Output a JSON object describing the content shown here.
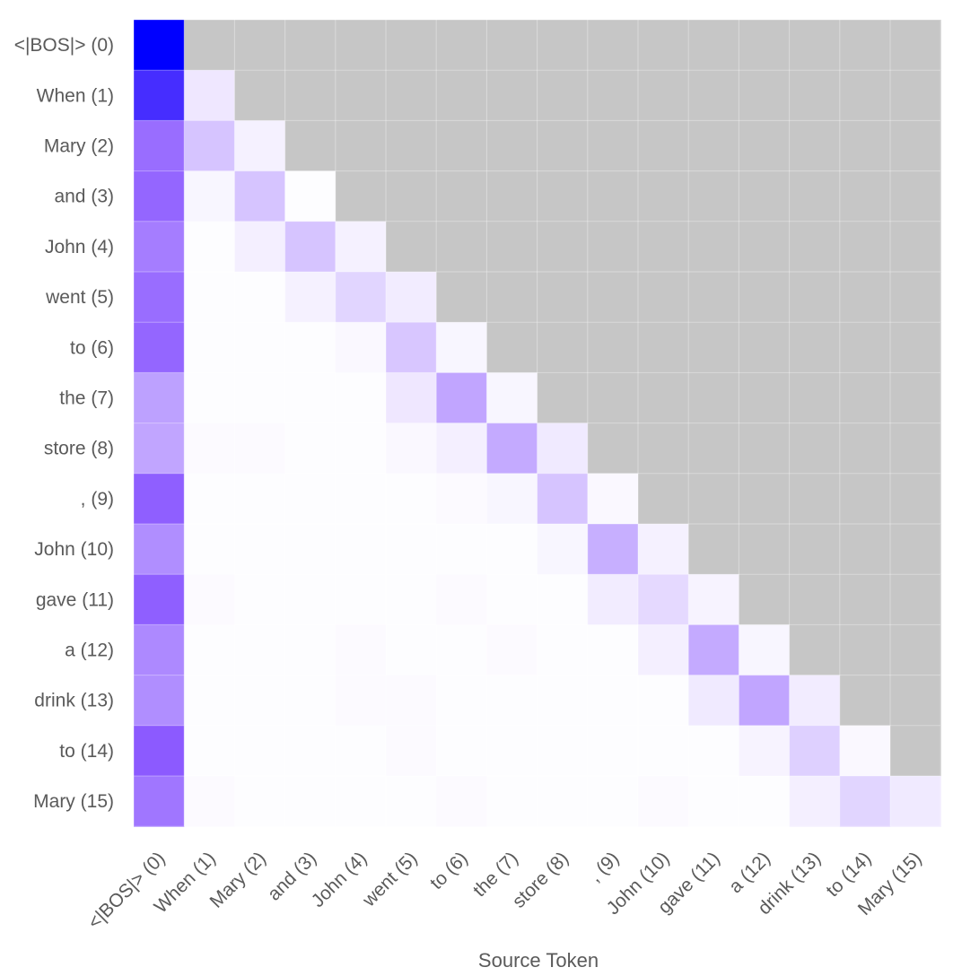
{
  "chart_data": {
    "type": "heatmap",
    "xlabel": "Source Token",
    "ylabel": "",
    "tokens": [
      "<|BOS|> (0)",
      "When (1)",
      "Mary (2)",
      "and (3)",
      "John (4)",
      "went (5)",
      "to (6)",
      "the (7)",
      "store (8)",
      ", (9)",
      "John (10)",
      "gave (11)",
      "a (12)",
      "drink (13)",
      "to (14)",
      "Mary (15)"
    ],
    "x_categories": [
      "<|BOS|> (0)",
      "When (1)",
      "Mary (2)",
      "and (3)",
      "John (4)",
      "went (5)",
      "to (6)",
      "the (7)",
      "store (8)",
      ", (9)",
      "John (10)",
      "gave (11)",
      "a (12)",
      "drink (13)",
      "to (14)",
      "Mary (15)"
    ],
    "y_categories": [
      "<|BOS|> (0)",
      "When (1)",
      "Mary (2)",
      "and (3)",
      "John (4)",
      "went (5)",
      "to (6)",
      "the (7)",
      "store (8)",
      ", (9)",
      "John (10)",
      "gave (11)",
      "a (12)",
      "drink (13)",
      "to (14)",
      "Mary (15)"
    ],
    "mask": "causal (upper triangle masked)",
    "colors": {
      "masked": "#c6c6c6",
      "low": "#ffffff",
      "high": "#0000ff",
      "mid": "#8c5aff"
    },
    "values": [
      [
        1.0
      ],
      [
        0.85,
        0.1
      ],
      [
        0.62,
        0.25,
        0.06
      ],
      [
        0.65,
        0.04,
        0.25,
        0.01
      ],
      [
        0.55,
        0.01,
        0.07,
        0.25,
        0.06
      ],
      [
        0.62,
        0.01,
        0.01,
        0.06,
        0.18,
        0.08
      ],
      [
        0.65,
        0.01,
        0.01,
        0.01,
        0.03,
        0.24,
        0.04
      ],
      [
        0.4,
        0.01,
        0.01,
        0.01,
        0.01,
        0.1,
        0.38,
        0.04
      ],
      [
        0.38,
        0.02,
        0.02,
        0.01,
        0.01,
        0.03,
        0.07,
        0.36,
        0.09
      ],
      [
        0.68,
        0.01,
        0.01,
        0.01,
        0.01,
        0.01,
        0.02,
        0.04,
        0.25,
        0.03
      ],
      [
        0.48,
        0.01,
        0.01,
        0.01,
        0.01,
        0.01,
        0.01,
        0.01,
        0.04,
        0.34,
        0.06
      ],
      [
        0.68,
        0.02,
        0.01,
        0.01,
        0.01,
        0.01,
        0.02,
        0.01,
        0.01,
        0.08,
        0.16,
        0.05
      ],
      [
        0.5,
        0.01,
        0.01,
        0.01,
        0.02,
        0.01,
        0.01,
        0.02,
        0.01,
        0.01,
        0.07,
        0.36,
        0.04
      ],
      [
        0.48,
        0.01,
        0.01,
        0.01,
        0.02,
        0.02,
        0.01,
        0.01,
        0.01,
        0.01,
        0.01,
        0.09,
        0.38,
        0.08
      ],
      [
        0.7,
        0.01,
        0.01,
        0.01,
        0.01,
        0.02,
        0.01,
        0.01,
        0.01,
        0.01,
        0.01,
        0.01,
        0.05,
        0.2,
        0.03
      ],
      [
        0.58,
        0.02,
        0.01,
        0.01,
        0.01,
        0.01,
        0.02,
        0.01,
        0.01,
        0.01,
        0.02,
        0.01,
        0.01,
        0.07,
        0.18,
        0.09
      ]
    ]
  }
}
